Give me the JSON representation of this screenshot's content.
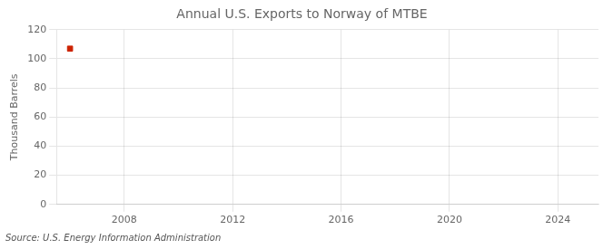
{
  "chart_data": {
    "type": "scatter",
    "title": "Annual U.S. Exports to Norway of MTBE",
    "ylabel": "Thousand Barrels",
    "source": "Source: U.S. Energy Information Administration",
    "x": [
      2006
    ],
    "values": [
      107
    ],
    "color": "#cc2200",
    "marker": "square",
    "xlim": [
      2005.5,
      2025.5
    ],
    "xticks": [
      2008,
      2012,
      2016,
      2020,
      2024
    ],
    "ylim": [
      0,
      120
    ],
    "yticks": [
      0,
      20,
      40,
      60,
      80,
      100,
      120
    ],
    "grid": true
  }
}
